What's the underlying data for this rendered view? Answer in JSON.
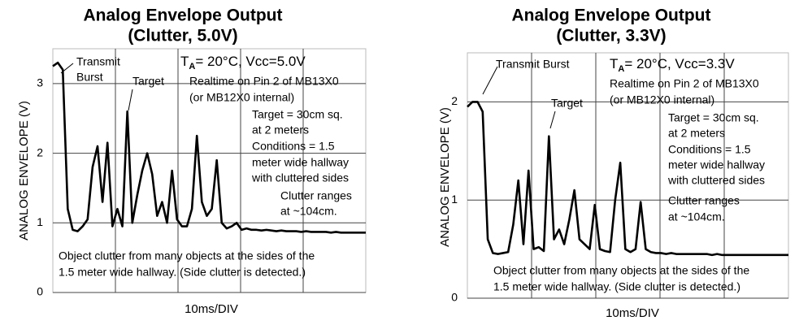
{
  "chart_data": [
    {
      "type": "line",
      "title": "Analog Envelope Output",
      "subtitle": "(Clutter, 5.0V)",
      "ylabel": "ANALOG ENVELOPE (V)",
      "xlabel": "10ms/DIV",
      "ylim": [
        0,
        3.5
      ],
      "yticks": [
        0,
        1,
        2,
        3
      ],
      "grid": true,
      "color": "#000000",
      "condition": {
        "text": "T",
        "subscript": "A",
        "rest": "= 20°C, Vcc=5.0V"
      },
      "annotations": [
        "Transmit",
        "Burst",
        "Target",
        "Realtime on Pin 2 of MB13X0",
        "(or MB12X0 internal)",
        "Target = 30cm sq.",
        "at 2 meters",
        "Conditions = 1.5",
        "meter wide hallway",
        "with cluttered sides",
        "Clutter ranges",
        "at ~104cm.",
        "Object clutter from many objects at the sides of the",
        "1.5 meter wide hallway.  (Side clutter is detected.)"
      ],
      "values": [
        3.25,
        3.3,
        3.2,
        1.2,
        0.9,
        0.88,
        0.95,
        1.05,
        1.8,
        2.1,
        1.3,
        2.15,
        0.95,
        1.2,
        0.95,
        2.6,
        1.0,
        1.4,
        1.75,
        2.0,
        1.7,
        1.1,
        1.3,
        1.0,
        1.75,
        1.05,
        0.95,
        0.95,
        1.2,
        2.25,
        1.3,
        1.1,
        1.2,
        1.9,
        1.0,
        0.92,
        0.95,
        1.0,
        0.9,
        0.92,
        0.9,
        0.9,
        0.89,
        0.9,
        0.89,
        0.88,
        0.89,
        0.88,
        0.88,
        0.88,
        0.87,
        0.88,
        0.87,
        0.87,
        0.87,
        0.87,
        0.86,
        0.87,
        0.86,
        0.86,
        0.86,
        0.86,
        0.86,
        0.86
      ]
    },
    {
      "type": "line",
      "title": "Analog Envelope Output",
      "subtitle": "(Clutter, 3.3V)",
      "ylabel": "ANALOG ENVELOPE (V)",
      "xlabel": "10ms/DIV",
      "ylim": [
        0,
        2.5
      ],
      "yticks": [
        0,
        1,
        2
      ],
      "grid": true,
      "color": "#000000",
      "condition": {
        "text": "T",
        "subscript": "A",
        "rest": "= 20°C, Vcc=3.3V"
      },
      "annotations": [
        "Transmit Burst",
        "Target",
        "Realtime on Pin 2 of MB13X0",
        "(or MB12X0 internal)",
        "Target = 30cm sq.",
        "at 2 meters",
        "Conditions = 1.5",
        "meter wide hallway",
        "with cluttered sides",
        "Clutter ranges",
        "at ~104cm.",
        "Object clutter from many objects at the sides of the",
        "1.5 meter wide hallway.  (Side clutter is detected.)"
      ],
      "values": [
        1.95,
        2.0,
        2.0,
        1.9,
        0.6,
        0.46,
        0.45,
        0.46,
        0.47,
        0.75,
        1.2,
        0.55,
        1.3,
        0.5,
        0.52,
        0.48,
        1.65,
        0.6,
        0.7,
        0.55,
        0.8,
        1.1,
        0.6,
        0.55,
        0.5,
        0.95,
        0.5,
        0.48,
        0.47,
        1.0,
        1.38,
        0.5,
        0.47,
        0.5,
        0.98,
        0.5,
        0.47,
        0.46,
        0.46,
        0.45,
        0.46,
        0.45,
        0.45,
        0.45,
        0.45,
        0.45,
        0.45,
        0.45,
        0.44,
        0.45,
        0.44,
        0.44,
        0.44,
        0.44,
        0.44,
        0.44,
        0.44,
        0.44,
        0.44,
        0.44,
        0.44,
        0.44,
        0.44,
        0.44
      ]
    }
  ]
}
